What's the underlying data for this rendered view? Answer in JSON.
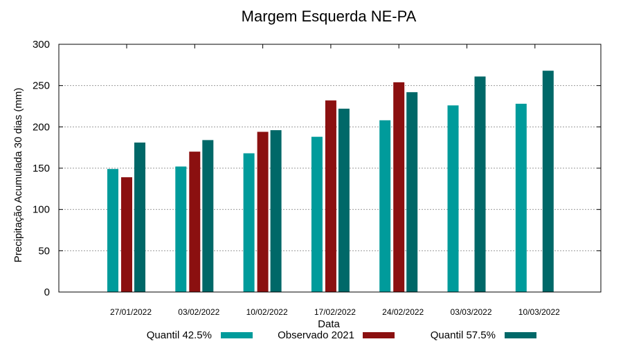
{
  "chart_data": {
    "type": "bar",
    "title": "Margem Esquerda NE-PA",
    "xlabel": "Data",
    "ylabel": "Precipitação Acumulada 30 dias (mm)",
    "ylim": [
      0,
      300
    ],
    "yticks": [
      0,
      50,
      100,
      150,
      200,
      250,
      300
    ],
    "grid": true,
    "legend_position": "bottom",
    "categories": [
      "27/01/2022",
      "03/02/2022",
      "10/02/2022",
      "17/02/2022",
      "24/02/2022",
      "03/03/2022",
      "10/03/2022"
    ],
    "series": [
      {
        "name": "Quantil 42.5%",
        "color": "#009b9b",
        "values": [
          149,
          152,
          168,
          188,
          208,
          226,
          228
        ]
      },
      {
        "name": "Observado 2021",
        "color": "#8b1010",
        "values": [
          139,
          170,
          194,
          232,
          254,
          null,
          null
        ]
      },
      {
        "name": "Quantil 57.5%",
        "color": "#006868",
        "values": [
          181,
          184,
          196,
          222,
          242,
          261,
          268
        ]
      }
    ]
  }
}
